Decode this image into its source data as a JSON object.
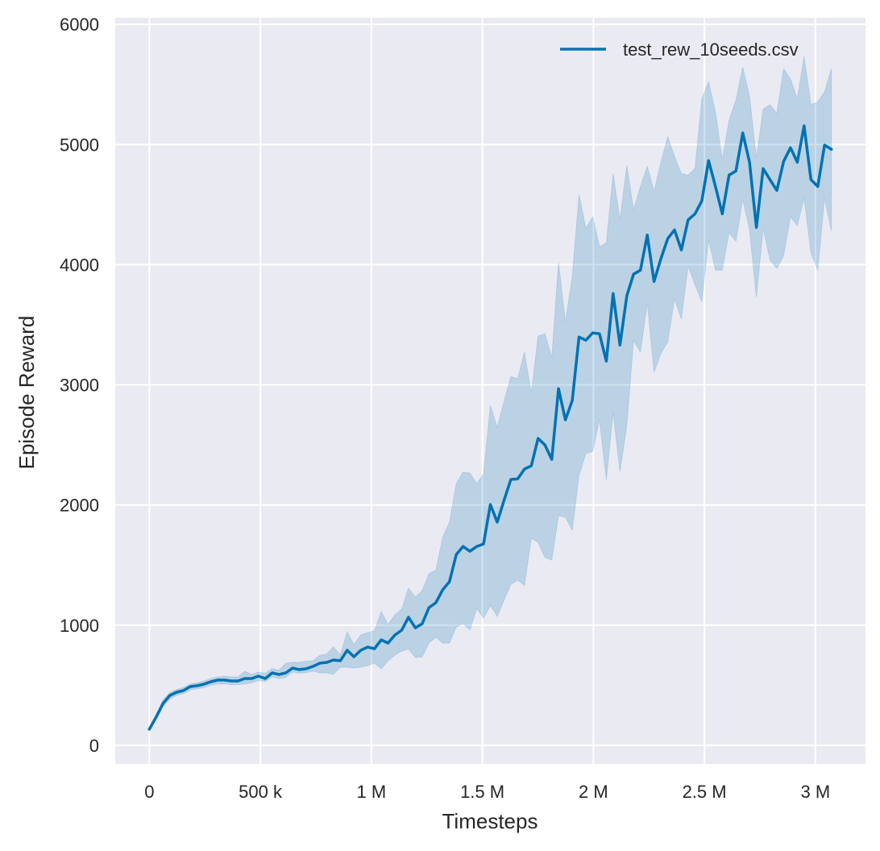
{
  "chart_data": {
    "type": "line",
    "title": "",
    "xlabel": "Timesteps",
    "ylabel": "Episode Reward",
    "xlim": [
      -153600,
      3225600
    ],
    "ylim": [
      -155,
      6055
    ],
    "grid": true,
    "legend_position": "top-right",
    "background_color": "#eaeaf2",
    "x_ticks": [
      0,
      500000,
      1000000,
      1500000,
      2000000,
      2500000,
      3000000
    ],
    "x_tick_labels": [
      "0",
      "500 k",
      "1 M",
      "1.5 M",
      "2 M",
      "2.5 M",
      "3 M"
    ],
    "y_ticks": [
      0,
      1000,
      2000,
      3000,
      4000,
      5000,
      6000
    ],
    "y_tick_labels": [
      "0",
      "1000",
      "2000",
      "3000",
      "4000",
      "5000",
      "6000"
    ],
    "series": [
      {
        "name": "test_rew_10seeds.csv",
        "color": "#0072b2",
        "x": [
          0,
          30720,
          61440,
          92160,
          122880,
          153600,
          184320,
          215040,
          245760,
          276480,
          307200,
          337920,
          368640,
          399360,
          430080,
          460800,
          491520,
          522240,
          552960,
          583680,
          614400,
          645120,
          675840,
          706560,
          737280,
          768000,
          798720,
          829440,
          860160,
          890880,
          921600,
          952320,
          983040,
          1013760,
          1044480,
          1075200,
          1105920,
          1136640,
          1167360,
          1198080,
          1228800,
          1259520,
          1290240,
          1320960,
          1351680,
          1382400,
          1413120,
          1443840,
          1474560,
          1505280,
          1536000,
          1566720,
          1597440,
          1628160,
          1658880,
          1689600,
          1720320,
          1751040,
          1781760,
          1812480,
          1843200,
          1873920,
          1904640,
          1935360,
          1966080,
          1996800,
          2027520,
          2058240,
          2088960,
          2119680,
          2150400,
          2181120,
          2211840,
          2242560,
          2273280,
          2304000,
          2334720,
          2365440,
          2396160,
          2426880,
          2457600,
          2488320,
          2519040,
          2549760,
          2580480,
          2611200,
          2641920,
          2672640,
          2703360,
          2734080,
          2764800,
          2795520,
          2826240,
          2856960,
          2887680,
          2918400,
          2949120,
          2979840,
          3010560,
          3041280,
          3072000
        ],
        "mean": [
          134,
          235,
          348,
          415,
          442,
          456,
          489,
          496,
          509,
          529,
          543,
          543,
          536,
          536,
          556,
          556,
          576,
          556,
          603,
          590,
          603,
          643,
          630,
          637,
          657,
          684,
          690,
          710,
          704,
          791,
          737,
          791,
          818,
          804,
          878,
          851,
          918,
          958,
          1066,
          978,
          1012,
          1146,
          1186,
          1294,
          1361,
          1588,
          1655,
          1615,
          1655,
          1676,
          2004,
          1857,
          2038,
          2212,
          2218,
          2299,
          2326,
          2554,
          2500,
          2379,
          2969,
          2708,
          2869,
          3398,
          3371,
          3432,
          3425,
          3197,
          3760,
          3331,
          3740,
          3921,
          3954,
          4246,
          3860,
          4050,
          4217,
          4289,
          4122,
          4373,
          4423,
          4531,
          4866,
          4651,
          4423,
          4745,
          4779,
          5096,
          4852,
          4310,
          4799,
          4708,
          4618,
          4859,
          4973,
          4852,
          5156,
          4708,
          4651,
          4995,
          4960
        ],
        "upper": [
          150,
          255,
          375,
          440,
          465,
          480,
          510,
          520,
          535,
          555,
          570,
          575,
          570,
          570,
          617,
          590,
          610,
          600,
          640,
          625,
          684,
          692,
          690,
          700,
          704,
          750,
          759,
          819,
          752,
          945,
          838,
          918,
          938,
          952,
          1113,
          1005,
          1086,
          1135,
          1307,
          1235,
          1287,
          1430,
          1457,
          1731,
          1857,
          2178,
          2274,
          2265,
          2178,
          2259,
          2828,
          2647,
          2862,
          3070,
          3050,
          3273,
          2929,
          3406,
          3425,
          3230,
          4021,
          3525,
          3900,
          4584,
          4303,
          4400,
          4149,
          4182,
          4759,
          4373,
          4828,
          4457,
          4650,
          4819,
          4611,
          4850,
          5067,
          4900,
          4759,
          4745,
          4800,
          5379,
          5523,
          5271,
          4876,
          5201,
          5369,
          5643,
          5402,
          4888,
          5295,
          5331,
          5261,
          5630,
          5546,
          5379,
          5737,
          5331,
          5355,
          5438,
          5630
        ],
        "lower": [
          120,
          215,
          320,
          385,
          415,
          430,
          460,
          470,
          480,
          500,
          510,
          510,
          505,
          505,
          510,
          520,
          540,
          530,
          570,
          555,
          565,
          610,
          600,
          605,
          617,
          603,
          603,
          591,
          650,
          650,
          643,
          650,
          663,
          684,
          637,
          704,
          750,
          784,
          804,
          730,
          737,
          851,
          900,
          851,
          851,
          985,
          1012,
          960,
          1139,
          1059,
          1162,
          1072,
          1206,
          1340,
          1374,
          1329,
          1722,
          1689,
          1564,
          1542,
          1910,
          1899,
          1790,
          2245,
          2428,
          2446,
          2710,
          2207,
          2769,
          2279,
          2661,
          3368,
          3272,
          3680,
          3104,
          3260,
          3357,
          3714,
          3547,
          3990,
          3834,
          3692,
          4205,
          3954,
          3954,
          4265,
          4195,
          4541,
          4289,
          3726,
          4303,
          4038,
          3968,
          4075,
          4397,
          4325,
          4553,
          4098,
          3954,
          4553,
          4277
        ]
      }
    ]
  }
}
